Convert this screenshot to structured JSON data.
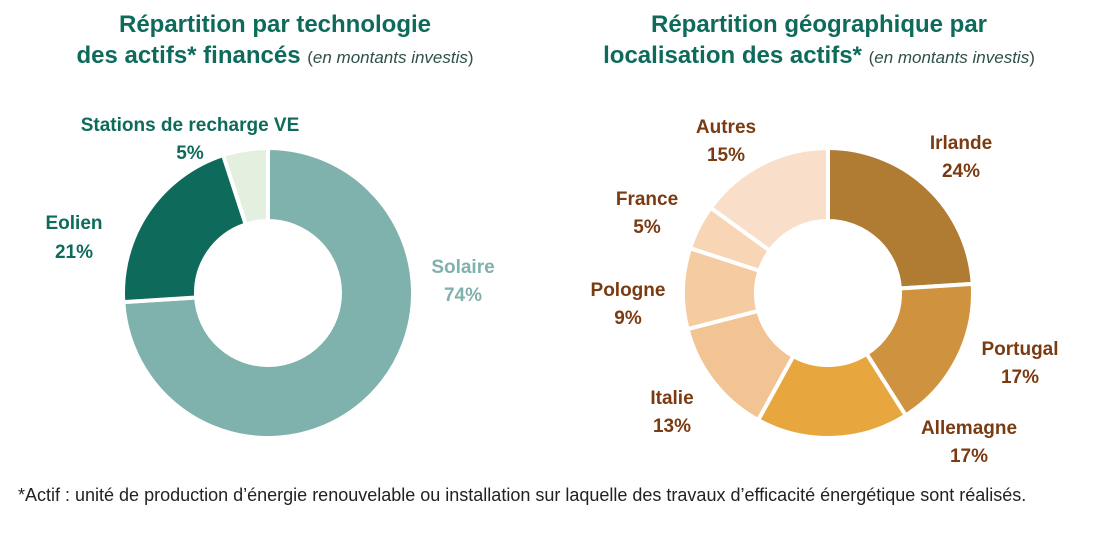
{
  "chart_data": [
    {
      "type": "pie",
      "title_line1": "Répartition par technologie",
      "title_line2": "des actifs* financés",
      "subtitle_note": "en montants investis",
      "donut": true,
      "slices": [
        {
          "label": "Solaire",
          "value": 74,
          "value_label": "74%",
          "color": "#7fb1ad",
          "label_color": "#7fb1ad"
        },
        {
          "label": "Eolien",
          "value": 21,
          "value_label": "21%",
          "color": "#0e6b5c",
          "label_color": "#0e6b5c"
        },
        {
          "label": "Stations de recharge VE",
          "value": 5,
          "value_label": "5%",
          "color": "#e3f0df",
          "label_color": "#0e6b5c"
        }
      ]
    },
    {
      "type": "pie",
      "title_line1": "Répartition géographique par",
      "title_line2": "localisation des actifs*",
      "subtitle_note": "en montants investis",
      "donut": true,
      "slices": [
        {
          "label": "Irlande",
          "value": 24,
          "value_label": "24%",
          "color": "#b07c33",
          "label_color": "#7a3b12"
        },
        {
          "label": "Portugal",
          "value": 17,
          "value_label": "17%",
          "color": "#cf9340",
          "label_color": "#7a3b12"
        },
        {
          "label": "Allemagne",
          "value": 17,
          "value_label": "17%",
          "color": "#e8a63f",
          "label_color": "#7a3b12"
        },
        {
          "label": "Italie",
          "value": 13,
          "value_label": "13%",
          "color": "#f3c493",
          "label_color": "#7a3b12"
        },
        {
          "label": "Pologne",
          "value": 9,
          "value_label": "9%",
          "color": "#f5cba2",
          "label_color": "#7a3b12"
        },
        {
          "label": "France",
          "value": 5,
          "value_label": "5%",
          "color": "#f7d5b5",
          "label_color": "#7a3b12"
        },
        {
          "label": "Autres",
          "value": 15,
          "value_label": "15%",
          "color": "#f9dfc9",
          "label_color": "#7a3b12"
        }
      ]
    }
  ],
  "footnote": "*Actif : unité de production d’énergie renouvelable ou installation sur laquelle des travaux d’efficacité énergétique sont réalisés."
}
